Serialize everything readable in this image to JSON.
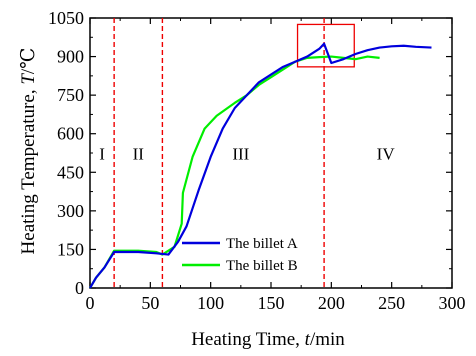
{
  "chart_data": {
    "type": "line",
    "title": "",
    "xlabel_prefix": "Heating Time, ",
    "xlabel_symbol": "t",
    "xlabel_unit": "/min",
    "ylabel_prefix": "Heating Temperature, ",
    "ylabel_symbol": "T",
    "ylabel_unit": "/℃",
    "xlim": [
      0,
      300
    ],
    "ylim": [
      0,
      1050
    ],
    "xticks": [
      0,
      50,
      100,
      150,
      200,
      250,
      300
    ],
    "yticks": [
      0,
      150,
      300,
      450,
      600,
      750,
      900,
      1050
    ],
    "grid": false,
    "legend_position": "bottom-center",
    "series": [
      {
        "name": "The billet A",
        "color": "#0000dd",
        "x": [
          0,
          5,
          12,
          20,
          25,
          40,
          55,
          65,
          73,
          80,
          90,
          100,
          110,
          120,
          130,
          140,
          150,
          160,
          170,
          180,
          190,
          194,
          200,
          210,
          220,
          230,
          240,
          250,
          260,
          270,
          283
        ],
        "y": [
          0,
          40,
          80,
          140,
          140,
          140,
          135,
          130,
          180,
          240,
          380,
          510,
          620,
          700,
          750,
          800,
          830,
          860,
          880,
          900,
          930,
          950,
          875,
          890,
          910,
          925,
          935,
          940,
          942,
          938,
          935
        ]
      },
      {
        "name": "The billet B",
        "color": "#00ee00",
        "x": [
          0,
          5,
          12,
          20,
          25,
          40,
          55,
          60,
          70,
          76,
          77,
          85,
          95,
          105,
          120,
          130,
          140,
          150,
          160,
          170,
          180,
          190,
          200,
          210,
          220,
          230,
          240
        ],
        "y": [
          0,
          40,
          80,
          145,
          145,
          145,
          140,
          130,
          160,
          250,
          370,
          510,
          620,
          670,
          720,
          750,
          790,
          820,
          850,
          880,
          895,
          898,
          900,
          895,
          890,
          900,
          895
        ]
      }
    ],
    "dividers": [
      20,
      60,
      194
    ],
    "divider_color": "#ee0000",
    "region_labels": [
      {
        "text": "I",
        "x": 10,
        "y": 500
      },
      {
        "text": "II",
        "x": 40,
        "y": 500
      },
      {
        "text": "III",
        "x": 125,
        "y": 500
      },
      {
        "text": "IV",
        "x": 245,
        "y": 500
      }
    ],
    "highlight_box": {
      "x0": 172,
      "x1": 219,
      "y0": 860,
      "y1": 1025,
      "color": "#ee0000"
    }
  }
}
